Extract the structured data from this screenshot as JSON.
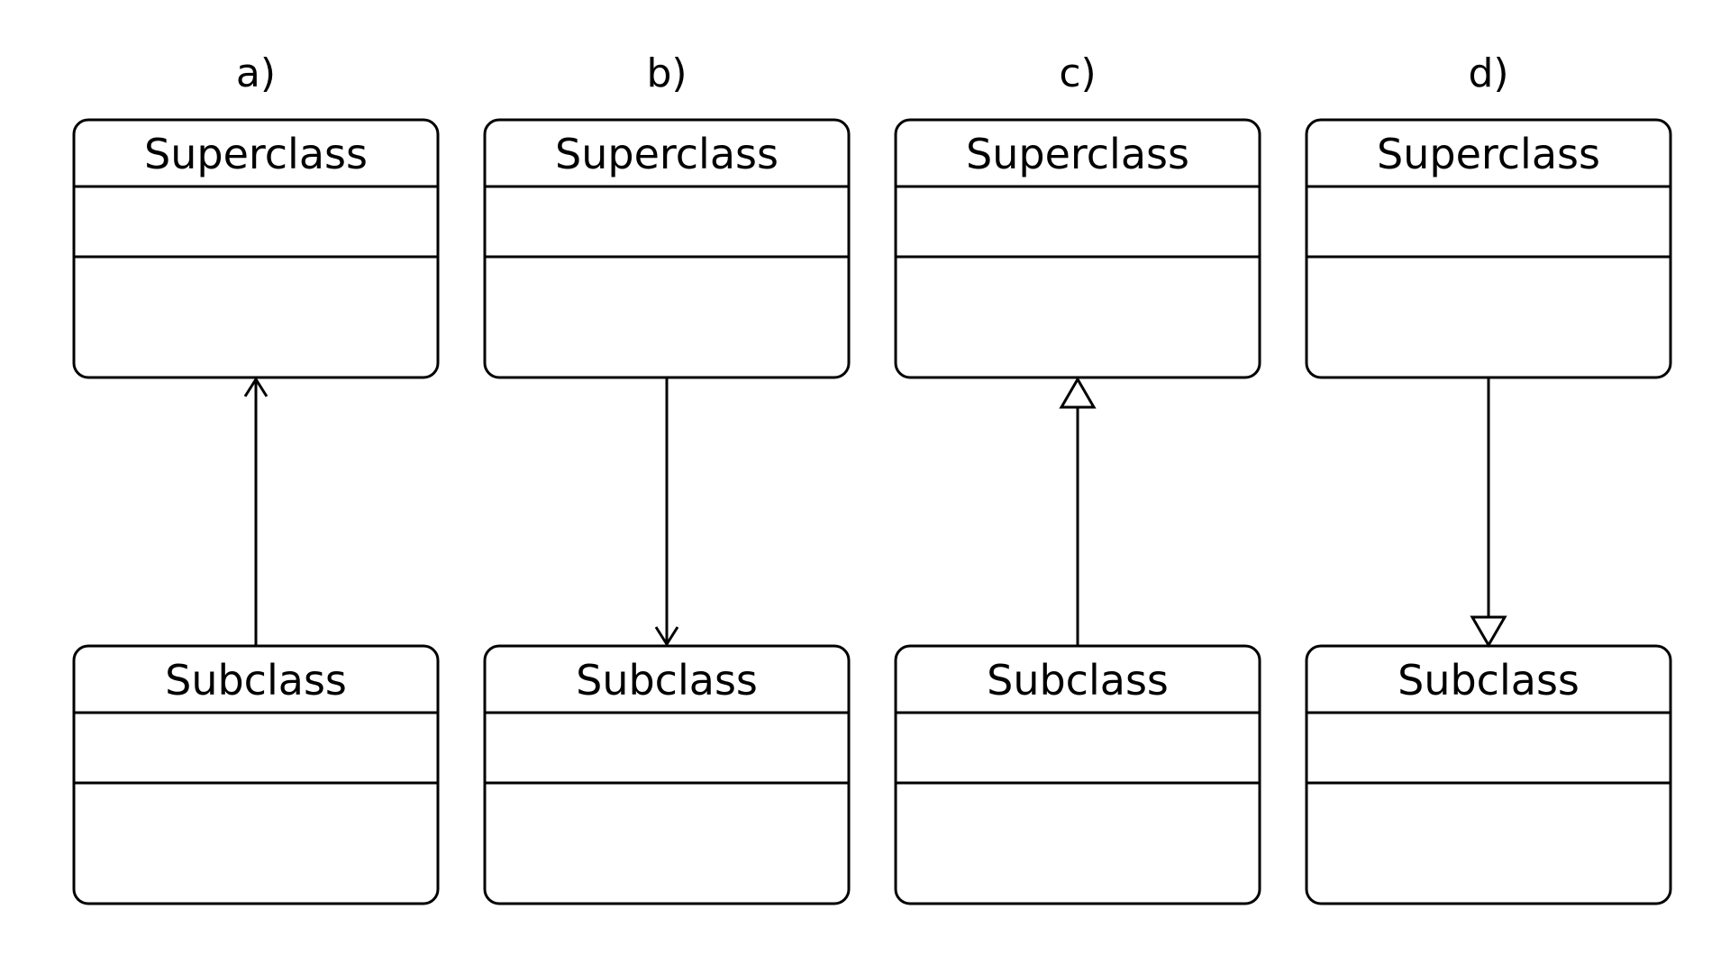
{
  "panels": [
    {
      "label": "a)",
      "superclass": "Superclass",
      "subclass": "Subclass",
      "relationship": {
        "direction": "up",
        "arrowhead": "open"
      }
    },
    {
      "label": "b)",
      "superclass": "Superclass",
      "subclass": "Subclass",
      "relationship": {
        "direction": "down",
        "arrowhead": "open"
      }
    },
    {
      "label": "c)",
      "superclass": "Superclass",
      "subclass": "Subclass",
      "relationship": {
        "direction": "up",
        "arrowhead": "hollow-triangle"
      }
    },
    {
      "label": "d)",
      "superclass": "Superclass",
      "subclass": "Subclass",
      "relationship": {
        "direction": "down",
        "arrowhead": "hollow-triangle"
      }
    }
  ]
}
